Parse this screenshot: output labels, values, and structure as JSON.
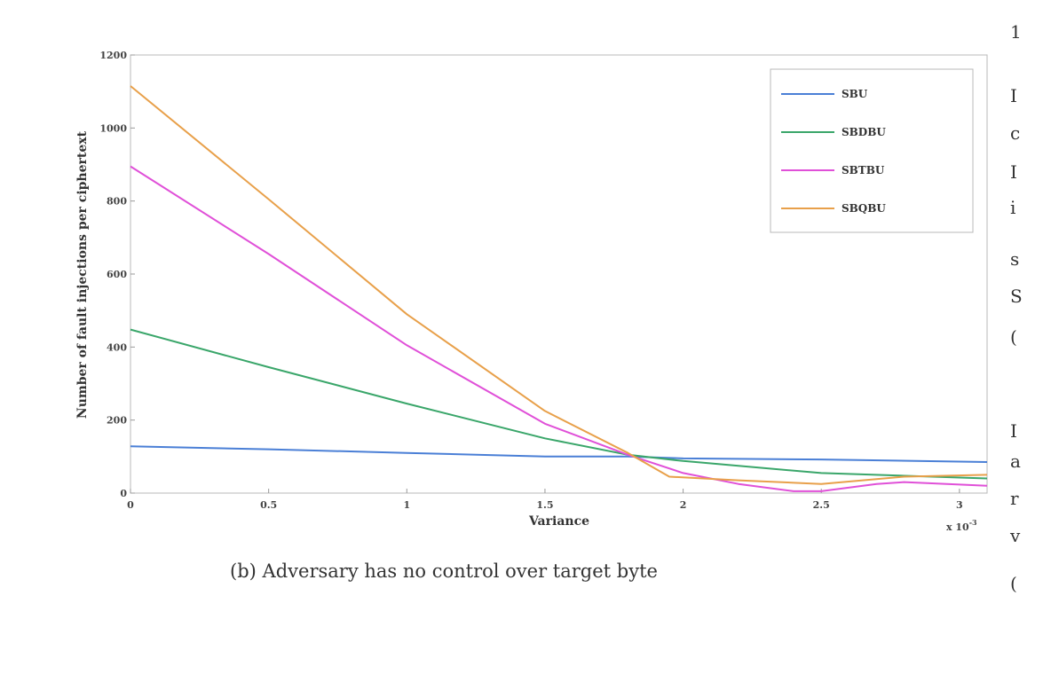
{
  "chart_data": {
    "type": "line",
    "title": "",
    "xlabel": "Variance",
    "ylabel": "Number of fault injections per ciphertext",
    "x_multiplier_label": "x 10",
    "x_multiplier_exponent": "-3",
    "xlim": [
      0,
      3.1
    ],
    "ylim": [
      0,
      1200
    ],
    "xticks": [
      0,
      0.5,
      1,
      1.5,
      2,
      2.5,
      3
    ],
    "xtick_labels": [
      "0",
      "0.5",
      "1",
      "1.5",
      "2",
      "2.5",
      "3"
    ],
    "yticks": [
      0,
      200,
      400,
      600,
      800,
      1000,
      1200
    ],
    "ytick_labels": [
      "0",
      "200",
      "400",
      "600",
      "800",
      "1000",
      "1200"
    ],
    "grid": false,
    "legend_position": "top-right",
    "series": [
      {
        "name": "SBU",
        "color": "#4a7fd6",
        "x": [
          0,
          0.5,
          1.0,
          1.5,
          1.8,
          2.0,
          2.5,
          3.1
        ],
        "y": [
          128,
          120,
          110,
          100,
          100,
          95,
          92,
          85
        ]
      },
      {
        "name": "SBDBU",
        "color": "#3aa66a",
        "x": [
          0,
          0.5,
          1.0,
          1.5,
          1.8,
          2.0,
          2.5,
          3.1
        ],
        "y": [
          448,
          345,
          245,
          150,
          105,
          88,
          55,
          40
        ]
      },
      {
        "name": "SBTBU",
        "color": "#e050d8",
        "x": [
          0,
          0.5,
          1.0,
          1.5,
          1.8,
          2.0,
          2.2,
          2.4,
          2.5,
          2.7,
          2.8,
          3.1
        ],
        "y": [
          895,
          655,
          405,
          190,
          105,
          55,
          25,
          5,
          5,
          25,
          30,
          20
        ]
      },
      {
        "name": "SBQBU",
        "color": "#e8a04a",
        "x": [
          0,
          0.5,
          1.0,
          1.5,
          1.8,
          1.95,
          2.2,
          2.5,
          2.8,
          3.1
        ],
        "y": [
          1115,
          805,
          490,
          225,
          110,
          45,
          35,
          25,
          45,
          50
        ]
      }
    ]
  },
  "caption": "(b) Adversary has no control over target byte",
  "edge_glyphs": [
    "1",
    "I",
    "c",
    "I",
    "i",
    "s",
    "S",
    "(",
    "I",
    "a",
    "r",
    "v",
    "("
  ]
}
